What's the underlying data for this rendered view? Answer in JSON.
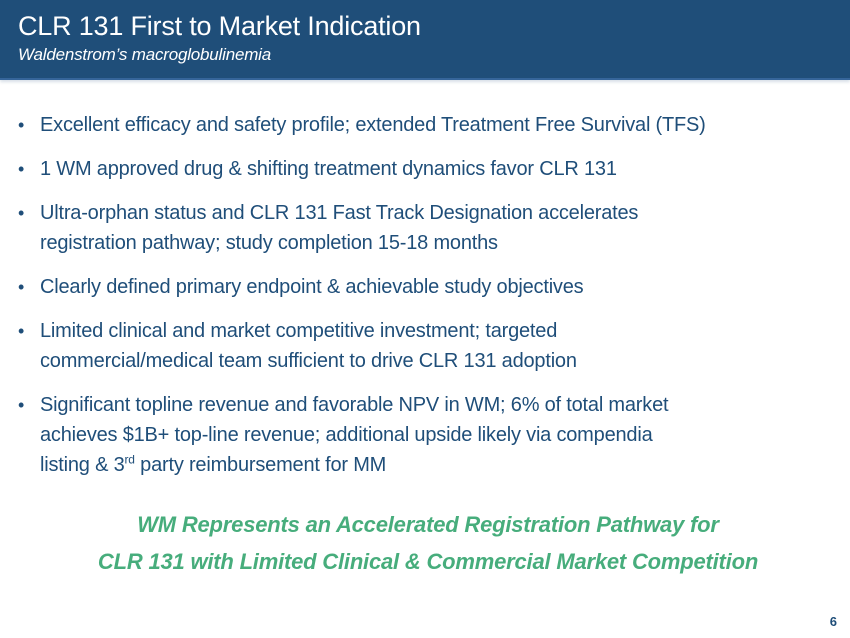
{
  "slide": {
    "title": "CLR 131 First to Market Indication",
    "subtitle": "Waldenstrom’s macroglobulinemia",
    "bullet_marker": "•",
    "bullets": [
      {
        "lines": [
          "Excellent efficacy and safety profile; extended Treatment Free Survival (TFS)"
        ]
      },
      {
        "lines": [
          "1 WM approved drug & shifting treatment dynamics favor CLR 131"
        ]
      },
      {
        "lines": [
          "Ultra-orphan status and CLR 131 Fast Track Designation accelerates",
          "registration pathway; study completion 15-18 months"
        ]
      },
      {
        "lines": [
          "Clearly defined primary endpoint & achievable study objectives"
        ]
      },
      {
        "lines": [
          "Limited clinical and market competitive investment; targeted",
          "commercial/medical team sufficient to drive CLR 131 adoption"
        ]
      },
      {
        "lines": [
          "Significant topline revenue and favorable NPV in WM; 6% of total market",
          "achieves $1B+ top-line revenue; additional upside likely via compendia"
        ],
        "line3": {
          "pre": "listing & 3",
          "sup": "rd",
          "post": " party reimbursement for MM"
        }
      }
    ],
    "key_message": [
      "WM Represents an Accelerated Registration Pathway for",
      "CLR 131 with Limited Clinical & Commercial Market Competition"
    ],
    "page_number": "6",
    "colors": {
      "header_bg": "#1F4E79",
      "header_text": "#FFFFFF",
      "body_text": "#1F4E79",
      "accent_green": "#47AD7C"
    }
  }
}
